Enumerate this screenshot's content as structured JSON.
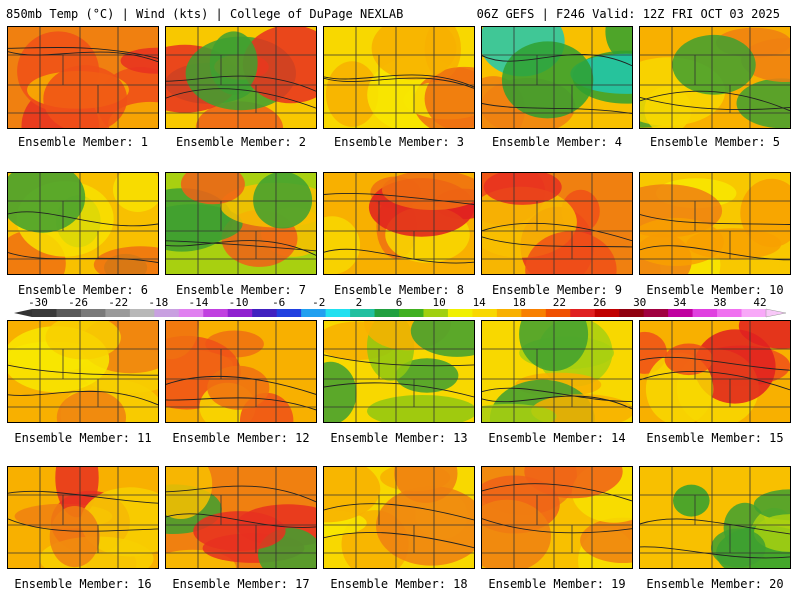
{
  "header": {
    "title": "850mb Temp (°C) | Wind (kts) | College of DuPage NEXLAB",
    "run": "06Z GEFS | F246 Valid: 12Z FRI OCT 03 2025"
  },
  "colorbar": {
    "labels": [
      "-30",
      "-26",
      "-22",
      "-18",
      "-14",
      "-10",
      "-6",
      "-2",
      "2",
      "6",
      "10",
      "14",
      "18",
      "22",
      "26",
      "30",
      "34",
      "38",
      "42"
    ],
    "colors": [
      "#3a3a3a",
      "#5a5a5a",
      "#7a7a7a",
      "#9a9a9a",
      "#b8b8b8",
      "#c8a0e0",
      "#e080f0",
      "#c040e0",
      "#9020d0",
      "#4020c0",
      "#2040e0",
      "#20a0f0",
      "#20e0f0",
      "#20c0a0",
      "#20a040",
      "#40b020",
      "#a0d010",
      "#f0f000",
      "#f8d800",
      "#f8b000",
      "#f88000",
      "#f05000",
      "#e02020",
      "#c00000",
      "#900010",
      "#a00040",
      "#c000a0",
      "#e040e0",
      "#f070f0",
      "#f8a8f8"
    ]
  },
  "panels": [
    {
      "caption": "Ensemble Member: 1",
      "palette": [
        "#f08010",
        "#f05018",
        "#f8b000",
        "#e83020"
      ]
    },
    {
      "caption": "Ensemble Member: 2",
      "palette": [
        "#f8c800",
        "#40a030",
        "#f06018",
        "#e83020"
      ]
    },
    {
      "caption": "Ensemble Member: 3",
      "palette": [
        "#f8d800",
        "#f8b000",
        "#f8e800",
        "#f07010"
      ]
    },
    {
      "caption": "Ensemble Member: 4",
      "palette": [
        "#f8c000",
        "#30a030",
        "#20c8b0",
        "#f08010"
      ]
    },
    {
      "caption": "Ensemble Member: 5",
      "palette": [
        "#f8b000",
        "#40a030",
        "#f8d800",
        "#f08010"
      ]
    },
    {
      "caption": "Ensemble Member: 6",
      "palette": [
        "#f8c000",
        "#40a030",
        "#f07010",
        "#f8e000"
      ]
    },
    {
      "caption": "Ensemble Member: 7",
      "palette": [
        "#a8d010",
        "#40a030",
        "#f8c000",
        "#f06018"
      ]
    },
    {
      "caption": "Ensemble Member: 8",
      "palette": [
        "#f8b000",
        "#f07010",
        "#e02020",
        "#f8d800"
      ]
    },
    {
      "caption": "Ensemble Member: 9",
      "palette": [
        "#f08010",
        "#f05018",
        "#f8c000",
        "#e83020"
      ]
    },
    {
      "caption": "Ensemble Member: 10",
      "palette": [
        "#f8c800",
        "#f8a000",
        "#f8e800",
        "#f08010"
      ]
    },
    {
      "caption": "Ensemble Member: 11",
      "palette": [
        "#f8b000",
        "#f8d000",
        "#f08010",
        "#f8e800"
      ]
    },
    {
      "caption": "Ensemble Member: 12",
      "palette": [
        "#f8b000",
        "#f07010",
        "#f8d800",
        "#f05018"
      ]
    },
    {
      "caption": "Ensemble Member: 13",
      "palette": [
        "#f8d800",
        "#40a030",
        "#f8b000",
        "#90c810"
      ]
    },
    {
      "caption": "Ensemble Member: 14",
      "palette": [
        "#f8d800",
        "#a8d010",
        "#f8b000",
        "#40a030"
      ]
    },
    {
      "caption": "Ensemble Member: 15",
      "palette": [
        "#f8b000",
        "#f05018",
        "#e02020",
        "#f8d800"
      ]
    },
    {
      "caption": "Ensemble Member: 16",
      "palette": [
        "#f8b000",
        "#f08010",
        "#e83020",
        "#f8d000"
      ]
    },
    {
      "caption": "Ensemble Member: 17",
      "palette": [
        "#f08010",
        "#e83020",
        "#f8c000",
        "#40a030"
      ]
    },
    {
      "caption": "Ensemble Member: 18",
      "palette": [
        "#f8d800",
        "#f8b000",
        "#f8e800",
        "#f08010"
      ]
    },
    {
      "caption": "Ensemble Member: 19",
      "palette": [
        "#f8c000",
        "#f08010",
        "#f8e000",
        "#f06018"
      ]
    },
    {
      "caption": "Ensemble Member: 20",
      "palette": [
        "#f8c000",
        "#40a030",
        "#a8d010",
        "#30a030"
      ]
    }
  ]
}
